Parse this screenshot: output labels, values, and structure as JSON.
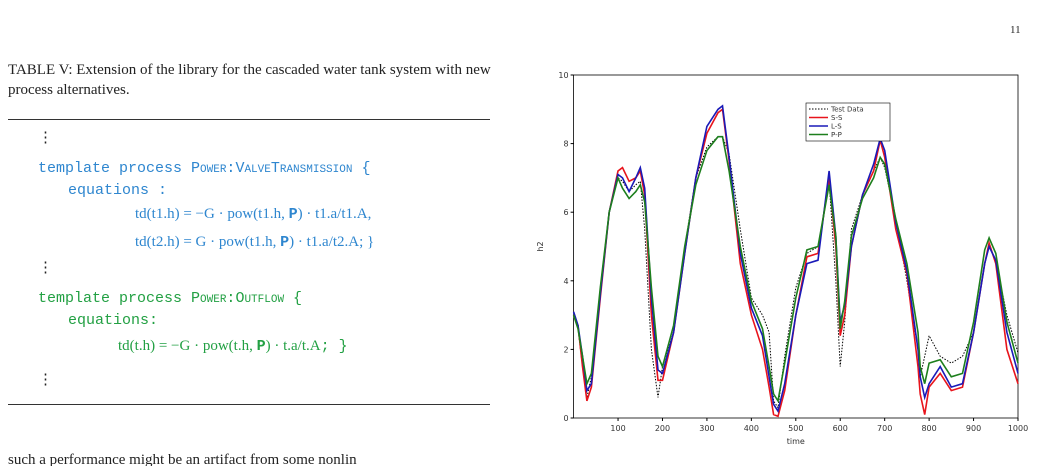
{
  "page_number": "11",
  "caption": "TABLE V: Extension of the library for the cascaded water tank system with new process alternatives.",
  "table": {
    "lines": [
      [
        "⋮"
      ],
      [
        "template process ",
        "Power:ValveTransmission",
        " {"
      ],
      [
        "equations :"
      ],
      [
        "td(t1.h) = −G · pow(t1.h, ",
        "P",
        ") · t1.a/t1.A,"
      ],
      [
        "td(t2.h) = G · pow(t1.h, ",
        "P",
        ") · t1.a/t2.A; }"
      ],
      [
        "⋮"
      ],
      [
        "template process ",
        "Power:Outflow",
        " {"
      ],
      [
        "equations:"
      ],
      [
        "td(t.h) = −G · pow(t.h, ",
        "P",
        ") · t.a/t.A",
        ";  }"
      ],
      [
        "⋮"
      ]
    ]
  },
  "body_text": "such a performance might be an artifact from some nonlin",
  "chart_data": {
    "type": "line",
    "x_label": "time",
    "y_label": "h2",
    "x": [
      0,
      10,
      20,
      30,
      40,
      60,
      80,
      100,
      110,
      125,
      140,
      150,
      160,
      175,
      190,
      200,
      225,
      250,
      275,
      300,
      325,
      335,
      350,
      375,
      400,
      425,
      440,
      450,
      460,
      475,
      500,
      525,
      550,
      575,
      590,
      600,
      610,
      625,
      650,
      675,
      690,
      700,
      725,
      750,
      775,
      780,
      790,
      800,
      825,
      850,
      875,
      900,
      925,
      935,
      950,
      975,
      1000
    ],
    "series": [
      {
        "name": "Test Data",
        "color": "#000000",
        "style": "dotted",
        "values": [
          3.0,
          2.6,
          1.5,
          0.6,
          1.2,
          3.8,
          6.0,
          7.0,
          6.9,
          6.6,
          6.8,
          6.9,
          5.5,
          2.0,
          0.6,
          1.5,
          2.5,
          5.0,
          7.0,
          7.9,
          8.2,
          8.2,
          7.7,
          5.5,
          3.5,
          3.0,
          2.5,
          0.5,
          0.3,
          1.8,
          3.8,
          4.8,
          5.0,
          6.9,
          4.0,
          1.5,
          2.8,
          5.5,
          6.5,
          7.2,
          7.6,
          7.3,
          5.8,
          4.0,
          2.0,
          1.2,
          1.8,
          2.4,
          1.8,
          1.6,
          1.8,
          2.5,
          4.5,
          5.0,
          4.6,
          3.0,
          1.9
        ]
      },
      {
        "name": "S-S",
        "color": "#e8141c",
        "style": "solid",
        "values": [
          3.0,
          2.7,
          1.5,
          0.5,
          0.9,
          3.5,
          6.0,
          7.2,
          7.3,
          6.9,
          7.0,
          7.2,
          6.5,
          3.0,
          1.1,
          1.1,
          2.5,
          4.8,
          7.0,
          8.3,
          8.9,
          9.0,
          7.5,
          4.5,
          3.0,
          2.0,
          0.9,
          0.1,
          0.05,
          0.8,
          3.0,
          4.7,
          4.8,
          7.0,
          5.0,
          2.4,
          3.0,
          5.0,
          6.5,
          7.2,
          8.1,
          7.6,
          5.5,
          4.2,
          1.5,
          0.7,
          0.1,
          0.9,
          1.3,
          0.8,
          0.9,
          2.5,
          4.5,
          5.1,
          4.5,
          2.0,
          1.0
        ]
      },
      {
        "name": "L-S",
        "color": "#1a1ab8",
        "style": "solid",
        "values": [
          3.1,
          2.7,
          1.8,
          0.8,
          1.0,
          3.6,
          6.0,
          7.1,
          7.0,
          6.6,
          7.0,
          7.3,
          6.7,
          3.5,
          1.4,
          1.3,
          2.5,
          4.8,
          7.0,
          8.5,
          9.0,
          9.1,
          7.6,
          4.8,
          3.2,
          2.4,
          1.2,
          0.4,
          0.2,
          1.0,
          3.0,
          4.5,
          4.6,
          7.2,
          5.3,
          2.8,
          3.3,
          5.0,
          6.5,
          7.4,
          8.15,
          7.8,
          5.7,
          4.3,
          2.0,
          1.2,
          0.6,
          1.0,
          1.5,
          0.9,
          1.0,
          2.5,
          4.5,
          5.0,
          4.6,
          2.5,
          1.3
        ]
      },
      {
        "name": "P-P",
        "color": "#1d7f1d",
        "style": "solid",
        "values": [
          3.0,
          2.6,
          1.8,
          1.0,
          1.3,
          3.8,
          6.0,
          7.0,
          6.7,
          6.4,
          6.6,
          6.8,
          6.3,
          3.8,
          1.8,
          1.5,
          2.7,
          5.0,
          6.8,
          7.8,
          8.2,
          8.2,
          7.2,
          5.0,
          3.4,
          2.6,
          1.5,
          0.7,
          0.5,
          1.6,
          3.5,
          4.9,
          5.0,
          6.8,
          5.3,
          2.6,
          3.4,
          5.3,
          6.4,
          7.0,
          7.6,
          7.4,
          5.8,
          4.5,
          2.5,
          1.5,
          1.0,
          1.6,
          1.7,
          1.2,
          1.3,
          2.8,
          4.9,
          5.25,
          4.8,
          2.8,
          1.6
        ]
      }
    ],
    "xlim": [
      0,
      1000
    ],
    "xticks": [
      100,
      200,
      300,
      400,
      500,
      600,
      700,
      800,
      900,
      1000
    ],
    "ylim": [
      0,
      10
    ],
    "yticks": [
      0,
      2,
      4,
      6,
      8,
      10
    ]
  }
}
